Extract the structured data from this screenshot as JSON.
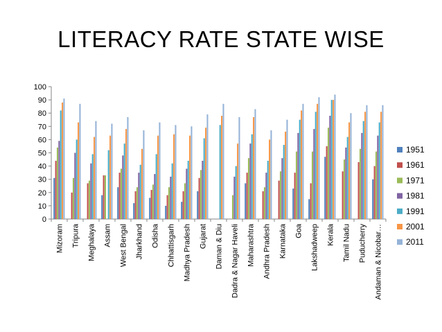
{
  "title": "LITERACY RATE STATE WISE",
  "chart_data": {
    "type": "bar",
    "title": "LITERACY RATE STATE WISE",
    "xlabel": "",
    "ylabel": "",
    "ylim": [
      0,
      100
    ],
    "yticks": [
      0,
      10,
      20,
      30,
      40,
      50,
      60,
      70,
      80,
      90,
      100
    ],
    "grid": false,
    "legend_position": "right",
    "categories": [
      "Mizoram",
      "Tripura",
      "Meghalaya",
      "Assam",
      "West Bengal",
      "Jharkhand",
      "Odisha",
      "Chhattisgarh",
      "Madhya Pradesh",
      "Gujarat",
      "Daman & Diu",
      "Dadra & Nagar Haveli",
      "Maharashtra",
      "Andhra Pradesh",
      "Karnataka",
      "Goa",
      "Lakshadweep",
      "Kerala",
      "Tamil Nadu",
      "Puducherry",
      "Andaman & Nicobar…"
    ],
    "series": [
      {
        "name": "1951",
        "color": "#4F81BD",
        "values": [
          31,
          null,
          null,
          18,
          24,
          12,
          16,
          10,
          13,
          21,
          null,
          null,
          27,
          null,
          null,
          23,
          15,
          47,
          null,
          null,
          30
        ]
      },
      {
        "name": "1961",
        "color": "#C0504D",
        "values": [
          44,
          20,
          27,
          33,
          35,
          21,
          22,
          18,
          21,
          31,
          null,
          null,
          35,
          21,
          29,
          35,
          27,
          55,
          36,
          43,
          40
        ]
      },
      {
        "name": "1971",
        "color": "#9BBB59",
        "values": [
          54,
          31,
          29,
          33,
          38,
          24,
          26,
          24,
          27,
          37,
          null,
          18,
          46,
          24,
          36,
          51,
          51,
          69,
          45,
          53,
          51
        ]
      },
      {
        "name": "1981",
        "color": "#8064A2",
        "values": [
          59,
          50,
          42,
          null,
          48,
          35,
          34,
          32,
          38,
          44,
          null,
          32,
          57,
          35,
          46,
          65,
          68,
          78,
          54,
          65,
          63
        ]
      },
      {
        "name": "1991",
        "color": "#4BACC6",
        "values": [
          82,
          60,
          49,
          52,
          57,
          41,
          49,
          42,
          44,
          61,
          71,
          40,
          64,
          44,
          56,
          75,
          81,
          90,
          62,
          74,
          73
        ]
      },
      {
        "name": "2001",
        "color": "#F79646",
        "values": [
          88,
          73,
          62,
          63,
          68,
          53,
          63,
          64,
          63,
          69,
          78,
          57,
          77,
          60,
          66,
          82,
          87,
          90,
          73,
          81,
          81
        ]
      },
      {
        "name": "2011",
        "color": "#95B3D7",
        "values": [
          91,
          87,
          74,
          72,
          77,
          67,
          73,
          71,
          70,
          79,
          87,
          77,
          83,
          67,
          75,
          87,
          92,
          94,
          80,
          86,
          86
        ]
      }
    ]
  }
}
